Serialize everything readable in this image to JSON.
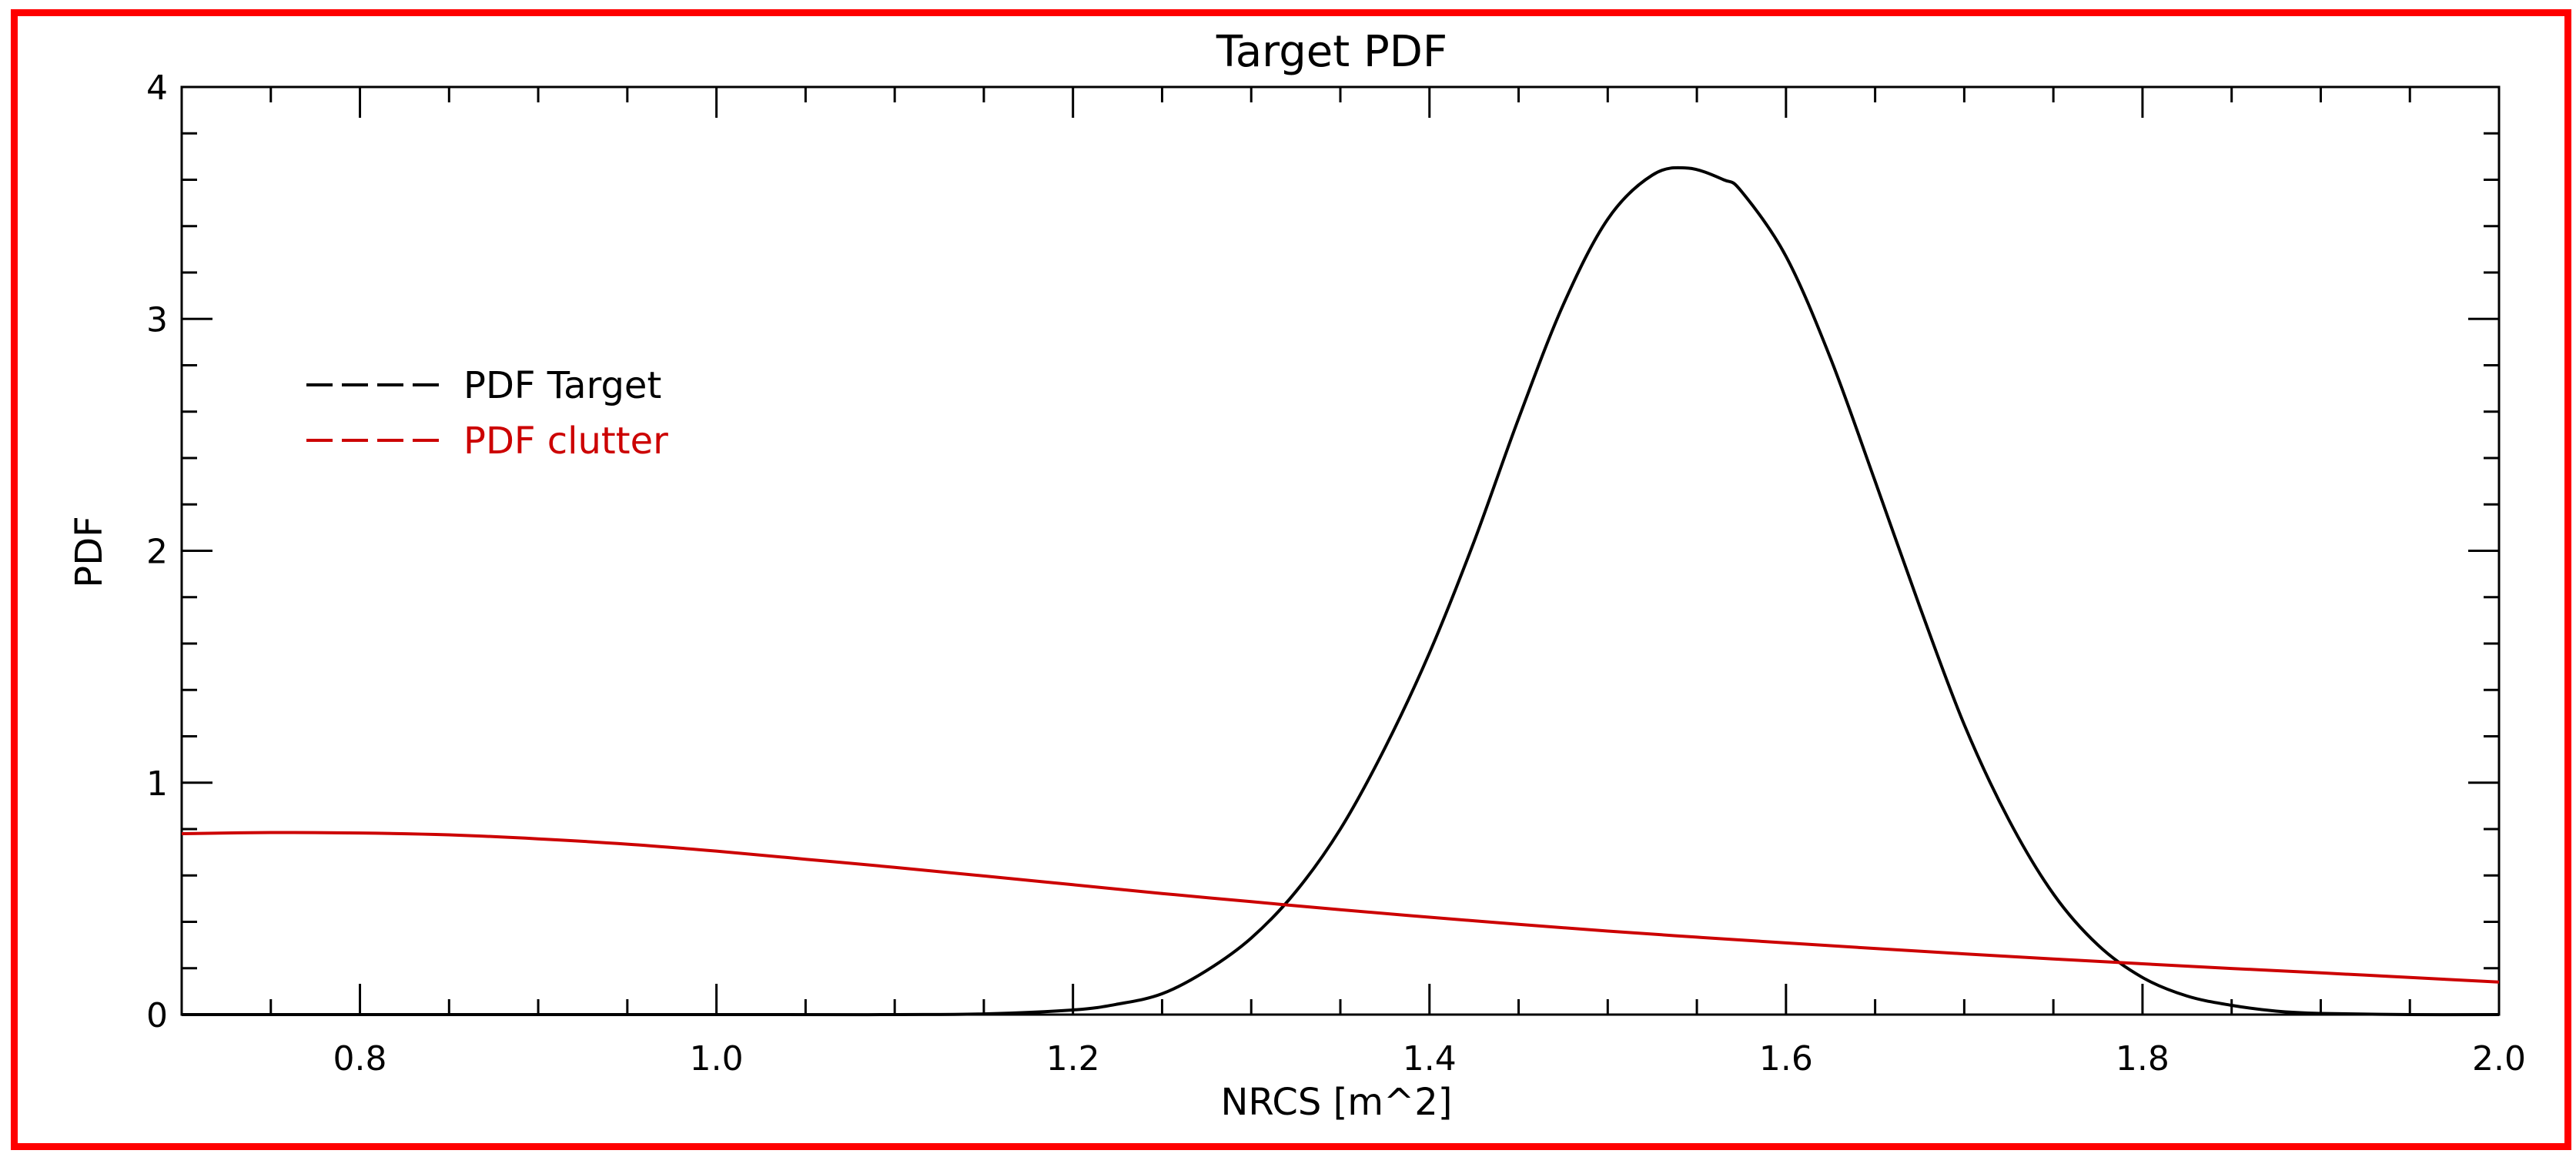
{
  "chart_data": {
    "type": "line",
    "title": "Target PDF",
    "xlabel": "NRCS [m^2]",
    "ylabel": "PDF",
    "xlim": [
      0.7,
      2.0
    ],
    "ylim": [
      0,
      4
    ],
    "x_ticks": [
      0.8,
      1.0,
      1.2,
      1.4,
      1.6,
      1.8,
      2.0
    ],
    "x_tick_labels": [
      "0.8",
      "1.0",
      "1.2",
      "1.4",
      "1.6",
      "1.8",
      "2.0"
    ],
    "y_ticks": [
      0,
      1,
      2,
      3,
      4
    ],
    "y_tick_labels": [
      "0",
      "1",
      "2",
      "3",
      "4"
    ],
    "grid": false,
    "legend_position": "upper-left",
    "series": [
      {
        "name": "PDF Target",
        "color": "#000000",
        "legend_dash": "dashed",
        "x": [
          0.7,
          1.0,
          1.1,
          1.15,
          1.2,
          1.225,
          1.25,
          1.275,
          1.3,
          1.325,
          1.35,
          1.375,
          1.4,
          1.425,
          1.45,
          1.475,
          1.5,
          1.525,
          1.545,
          1.565,
          1.575,
          1.6,
          1.625,
          1.65,
          1.675,
          1.7,
          1.725,
          1.75,
          1.775,
          1.8,
          1.825,
          1.85,
          1.875,
          1.9,
          1.95,
          2.0
        ],
        "y": [
          0.0,
          0.0,
          0.0,
          0.003,
          0.02,
          0.045,
          0.09,
          0.19,
          0.33,
          0.53,
          0.8,
          1.15,
          1.56,
          2.04,
          2.57,
          3.06,
          3.43,
          3.62,
          3.65,
          3.6,
          3.55,
          3.27,
          2.83,
          2.3,
          1.76,
          1.25,
          0.84,
          0.52,
          0.3,
          0.16,
          0.08,
          0.04,
          0.015,
          0.005,
          0.0,
          0.0
        ]
      },
      {
        "name": "PDF clutter",
        "color": "#cc0000",
        "legend_dash": "dashed",
        "x": [
          0.7,
          0.75,
          0.8,
          0.85,
          0.9,
          0.95,
          1.0,
          1.05,
          1.1,
          1.15,
          1.2,
          1.25,
          1.3,
          1.35,
          1.4,
          1.45,
          1.5,
          1.55,
          1.6,
          1.65,
          1.7,
          1.75,
          1.8,
          1.85,
          1.9,
          1.95,
          2.0
        ],
        "y": [
          0.78,
          0.785,
          0.783,
          0.775,
          0.758,
          0.735,
          0.705,
          0.67,
          0.635,
          0.598,
          0.56,
          0.522,
          0.487,
          0.452,
          0.42,
          0.389,
          0.36,
          0.334,
          0.309,
          0.285,
          0.262,
          0.24,
          0.219,
          0.199,
          0.18,
          0.16,
          0.14
        ]
      }
    ]
  }
}
